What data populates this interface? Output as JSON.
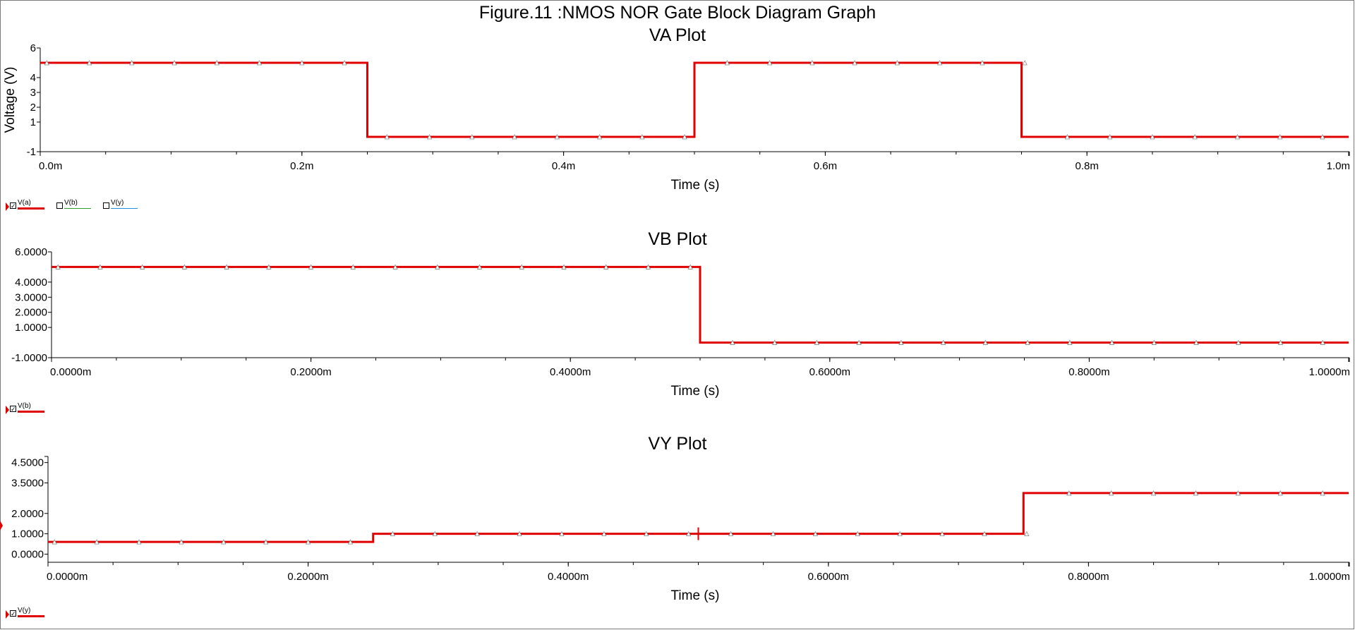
{
  "figure_title": "Figure.11 :NMOS NOR Gate Block Diagram Graph",
  "chart_data": [
    {
      "type": "line",
      "title": "VA Plot",
      "xlabel": "Time (s)",
      "ylabel": "Voltage (V)",
      "xlim": [
        0,
        1.0
      ],
      "ylim": [
        -1,
        6
      ],
      "x_ticks": [
        0,
        0.2,
        0.4,
        0.6,
        0.8,
        1.0
      ],
      "x_tick_labels": [
        "0.0m",
        "0.2m",
        "0.4m",
        "0.6m",
        "0.8m",
        "1.0m"
      ],
      "y_ticks": [
        -1,
        1,
        2,
        3,
        4,
        6
      ],
      "y_tick_labels": [
        "-1",
        "1",
        "2",
        "3",
        "4",
        "6"
      ],
      "series": [
        {
          "name": "V(a)",
          "color": "#e00000",
          "x": [
            0,
            0.25,
            0.25,
            0.5,
            0.5,
            0.75,
            0.75,
            1.0
          ],
          "y": [
            5,
            5,
            0,
            0,
            5,
            5,
            0,
            0
          ]
        }
      ],
      "legend": [
        {
          "label": "V(a)",
          "checked": true,
          "color": "#e00000"
        },
        {
          "label": "V(b)",
          "checked": false,
          "color": "#2ca02c"
        },
        {
          "label": "V(y)",
          "checked": false,
          "color": "#1f8fe0"
        }
      ]
    },
    {
      "type": "line",
      "title": "VB Plot",
      "xlabel": "Time (s)",
      "ylabel": "",
      "xlim": [
        0,
        1.0
      ],
      "ylim": [
        -1,
        6
      ],
      "x_ticks": [
        0,
        0.2,
        0.4,
        0.6,
        0.8,
        1.0
      ],
      "x_tick_labels": [
        "0.0000m",
        "0.2000m",
        "0.4000m",
        "0.6000m",
        "0.8000m",
        "1.0000m"
      ],
      "y_ticks": [
        -1,
        1,
        2,
        3,
        4,
        6
      ],
      "y_tick_labels": [
        "-1.0000",
        "1.0000",
        "2.0000",
        "3.0000",
        "4.0000",
        "6.0000"
      ],
      "series": [
        {
          "name": "V(b)",
          "color": "#e00000",
          "x": [
            0,
            0.5,
            0.5,
            1.0
          ],
          "y": [
            5,
            5,
            0,
            0
          ]
        }
      ],
      "legend": [
        {
          "label": "V(b)",
          "checked": true,
          "color": "#e00000"
        }
      ]
    },
    {
      "type": "line",
      "title": "VY Plot",
      "xlabel": "Time (s)",
      "ylabel": "",
      "xlim": [
        0,
        1.0
      ],
      "ylim": [
        -0.4,
        4.8
      ],
      "x_ticks": [
        0,
        0.2,
        0.4,
        0.6,
        0.8,
        1.0
      ],
      "x_tick_labels": [
        "0.0000m",
        "0.2000m",
        "0.4000m",
        "0.6000m",
        "0.8000m",
        "1.0000m"
      ],
      "y_ticks": [
        0,
        1,
        2,
        3.5,
        4.5
      ],
      "y_tick_labels": [
        "0.0000",
        "1.0000",
        "2.0000",
        "3.5000",
        "4.5000"
      ],
      "series": [
        {
          "name": "V(y)",
          "color": "#e00000",
          "x": [
            0,
            0.25,
            0.25,
            0.75,
            0.75,
            1.0
          ],
          "y": [
            0.6,
            0.6,
            1.0,
            1.0,
            3.0,
            3.0
          ]
        }
      ],
      "legend": [
        {
          "label": "V(y)",
          "checked": true,
          "color": "#e00000"
        }
      ]
    }
  ]
}
